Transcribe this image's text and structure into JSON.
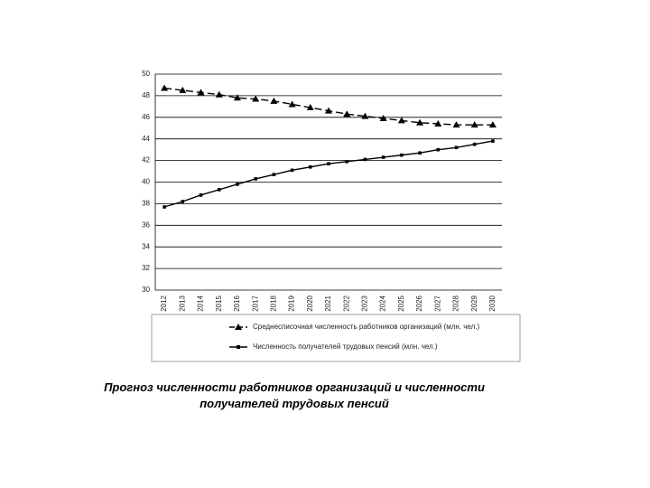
{
  "chart_data": {
    "type": "line",
    "caption": "Прогноз численности работников организаций и численности получателей трудовых пенсий",
    "categories": [
      "2012",
      "2013",
      "2014",
      "2015",
      "2016",
      "2017",
      "2018",
      "2019",
      "2020",
      "2021",
      "2022",
      "2023",
      "2024",
      "2025",
      "2026",
      "2027",
      "2028",
      "2029",
      "2030"
    ],
    "series": [
      {
        "name": "Среднесписочная численность работников организаций (млн. чел.)",
        "color": "#000000",
        "dashed": true,
        "marker": "triangle",
        "values": [
          48.7,
          48.5,
          48.3,
          48.1,
          47.8,
          47.7,
          47.5,
          47.2,
          46.9,
          46.6,
          46.3,
          46.1,
          45.9,
          45.7,
          45.5,
          45.4,
          45.3,
          45.3,
          45.3
        ]
      },
      {
        "name": "Численность получателей трудовых пенсий (млн. чел.)",
        "color": "#000000",
        "dashed": false,
        "marker": "square",
        "values": [
          37.7,
          38.2,
          38.8,
          39.3,
          39.8,
          40.3,
          40.7,
          41.1,
          41.4,
          41.7,
          41.9,
          42.1,
          42.3,
          42.5,
          42.7,
          43.0,
          43.2,
          43.5,
          43.8
        ]
      }
    ],
    "ylim": [
      30,
      50
    ],
    "yticks": [
      30,
      32,
      34,
      36,
      38,
      40,
      42,
      44,
      46,
      48,
      50
    ],
    "grid": true,
    "legend": "bottom"
  }
}
